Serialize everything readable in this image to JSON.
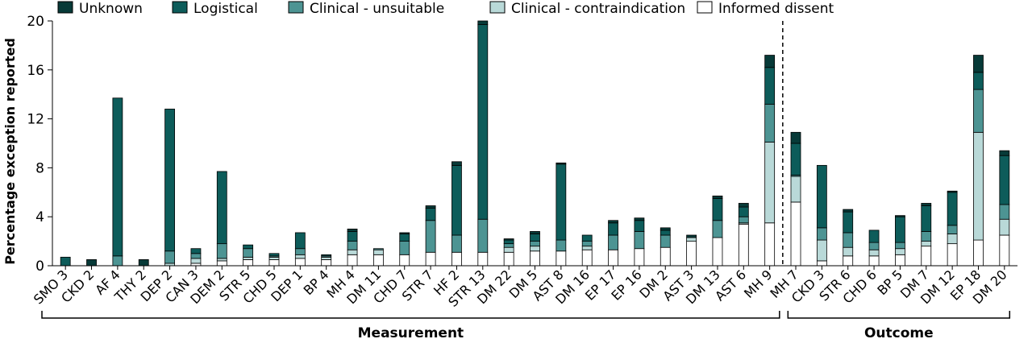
{
  "chart_data": {
    "type": "bar",
    "stacked": true,
    "ylabel": "Percentage exception reported",
    "ylim": [
      0,
      20
    ],
    "yticks": [
      0,
      4,
      8,
      12,
      16,
      20
    ],
    "grid": false,
    "legend_position": "top",
    "categories": [
      "SMO 3",
      "CKD 2",
      "AF 4",
      "THY 2",
      "DEP 2",
      "CAN 3",
      "DEM 2",
      "STR 5",
      "CHD 5",
      "DEP 1",
      "BP 4",
      "MH 4",
      "DM 11",
      "CHD 7",
      "STR 7",
      "HF 2",
      "STR 13",
      "DM 22",
      "DM 5",
      "AST 8",
      "DM 16",
      "EP 17",
      "EP 16",
      "DM 2",
      "AST 3",
      "DM 13",
      "AST 6",
      "MH 9",
      "MH 7",
      "CKD 3",
      "STR 6",
      "CHD 6",
      "BP 5",
      "DM 7",
      "DM 12",
      "EP 18",
      "DM 20"
    ],
    "series": [
      {
        "name": "Informed dissent",
        "color": "#ffffff",
        "values": [
          0,
          0,
          0,
          0,
          0,
          0.2,
          0.4,
          0.5,
          0.5,
          0.6,
          0.5,
          0.9,
          0.9,
          0.9,
          1.1,
          1.1,
          1.1,
          1.1,
          1.2,
          1.2,
          1.3,
          1.3,
          1.4,
          1.5,
          2.0,
          2.3,
          3.4,
          3.5,
          5.2,
          0.4,
          0.8,
          0.8,
          0.9,
          1.6,
          1.8,
          2.1,
          2.5
        ]
      },
      {
        "name": "Clinical - contraindication",
        "color": "#b9d9d8",
        "values": [
          0,
          0,
          0,
          0,
          0.2,
          0.4,
          0.2,
          0.2,
          0.2,
          0.3,
          0.2,
          0.4,
          0.4,
          0,
          0,
          0,
          0,
          0.4,
          0.4,
          0,
          0.3,
          0,
          0,
          0,
          0.3,
          0,
          0.1,
          6.6,
          2.1,
          1.7,
          0.7,
          0.5,
          0.5,
          0.4,
          0.8,
          8.8,
          1.3
        ]
      },
      {
        "name": "Clinical - unsuitable",
        "color": "#4d9493",
        "values": [
          0,
          0,
          0.8,
          0,
          1.0,
          0.4,
          1.2,
          0.7,
          0.1,
          0.5,
          0.1,
          0.7,
          0.1,
          1.1,
          2.6,
          1.4,
          2.7,
          0.3,
          0.4,
          0.9,
          0.4,
          1.2,
          1.4,
          1.0,
          0,
          1.4,
          0.5,
          3.1,
          0.1,
          1.0,
          1.2,
          0.6,
          0.5,
          0.8,
          0.7,
          3.5,
          1.2
        ]
      },
      {
        "name": "Logistical",
        "color": "#0d5c5a",
        "values": [
          0.7,
          0,
          12.9,
          0,
          11.6,
          0.4,
          5.9,
          0.3,
          0.2,
          1.3,
          0.1,
          0.8,
          0,
          0.6,
          1.0,
          5.7,
          15.9,
          0.3,
          0.6,
          6.2,
          0.5,
          1.0,
          0.9,
          0.4,
          0,
          1.8,
          0.8,
          3.0,
          2.6,
          5.1,
          1.7,
          1.0,
          2.1,
          2.1,
          2.7,
          1.4,
          4.0
        ]
      },
      {
        "name": "Unknown",
        "color": "#073a38",
        "values": [
          0,
          0.5,
          0,
          0.5,
          0,
          0,
          0,
          0,
          0,
          0,
          0,
          0.2,
          0,
          0.1,
          0.2,
          0.3,
          0.3,
          0.1,
          0.2,
          0.1,
          0,
          0.2,
          0.2,
          0.2,
          0.2,
          0.2,
          0.3,
          1.0,
          0.9,
          0,
          0.2,
          0,
          0.1,
          0.2,
          0.1,
          1.4,
          0.4
        ]
      }
    ],
    "legend_order": [
      "Unknown",
      "Logistical",
      "Clinical - unsuitable",
      "Clinical - contraindication",
      "Informed dissent"
    ],
    "groups": [
      {
        "label": "Measurement",
        "from": "SMO 3",
        "to": "MH 9"
      },
      {
        "label": "Outcome",
        "from": "MH 7",
        "to": "DM 20"
      }
    ],
    "divider_between": [
      "MH 9",
      "MH 7"
    ]
  }
}
